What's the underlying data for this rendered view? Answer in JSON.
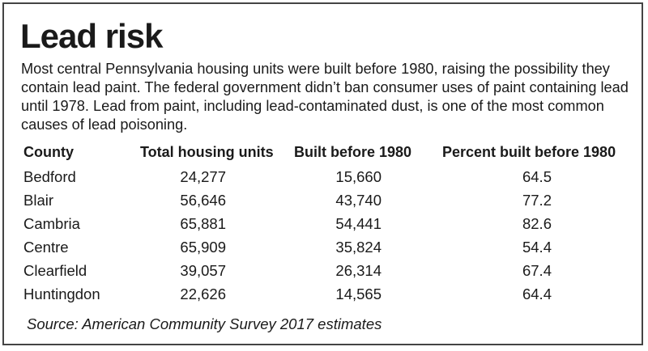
{
  "chart_data": {
    "type": "table",
    "title": "Lead risk",
    "description": "Most central Pennsylvania housing units were built before 1980, raising the possibility they contain lead paint. The federal government didn’t ban consumer uses of paint containing lead until 1978. Lead from paint, including lead-contaminated dust, is one of the most common causes of lead poisoning.",
    "columns": [
      "County",
      "Total housing units",
      "Built before 1980",
      "Percent built before 1980"
    ],
    "rows": [
      {
        "county": "Bedford",
        "total": "24,277",
        "built": "15,660",
        "pct": "64.5"
      },
      {
        "county": "Blair",
        "total": "56,646",
        "built": "43,740",
        "pct": "77.2"
      },
      {
        "county": "Cambria",
        "total": "65,881",
        "built": "54,441",
        "pct": "82.6"
      },
      {
        "county": "Centre",
        "total": "65,909",
        "built": "35,824",
        "pct": "54.4"
      },
      {
        "county": "Clearfield",
        "total": "39,057",
        "built": "26,314",
        "pct": "67.4"
      },
      {
        "county": "Huntingdon",
        "total": "22,626",
        "built": "14,565",
        "pct": "64.4"
      }
    ],
    "source": "Source: American Community Survey 2017 estimates"
  }
}
